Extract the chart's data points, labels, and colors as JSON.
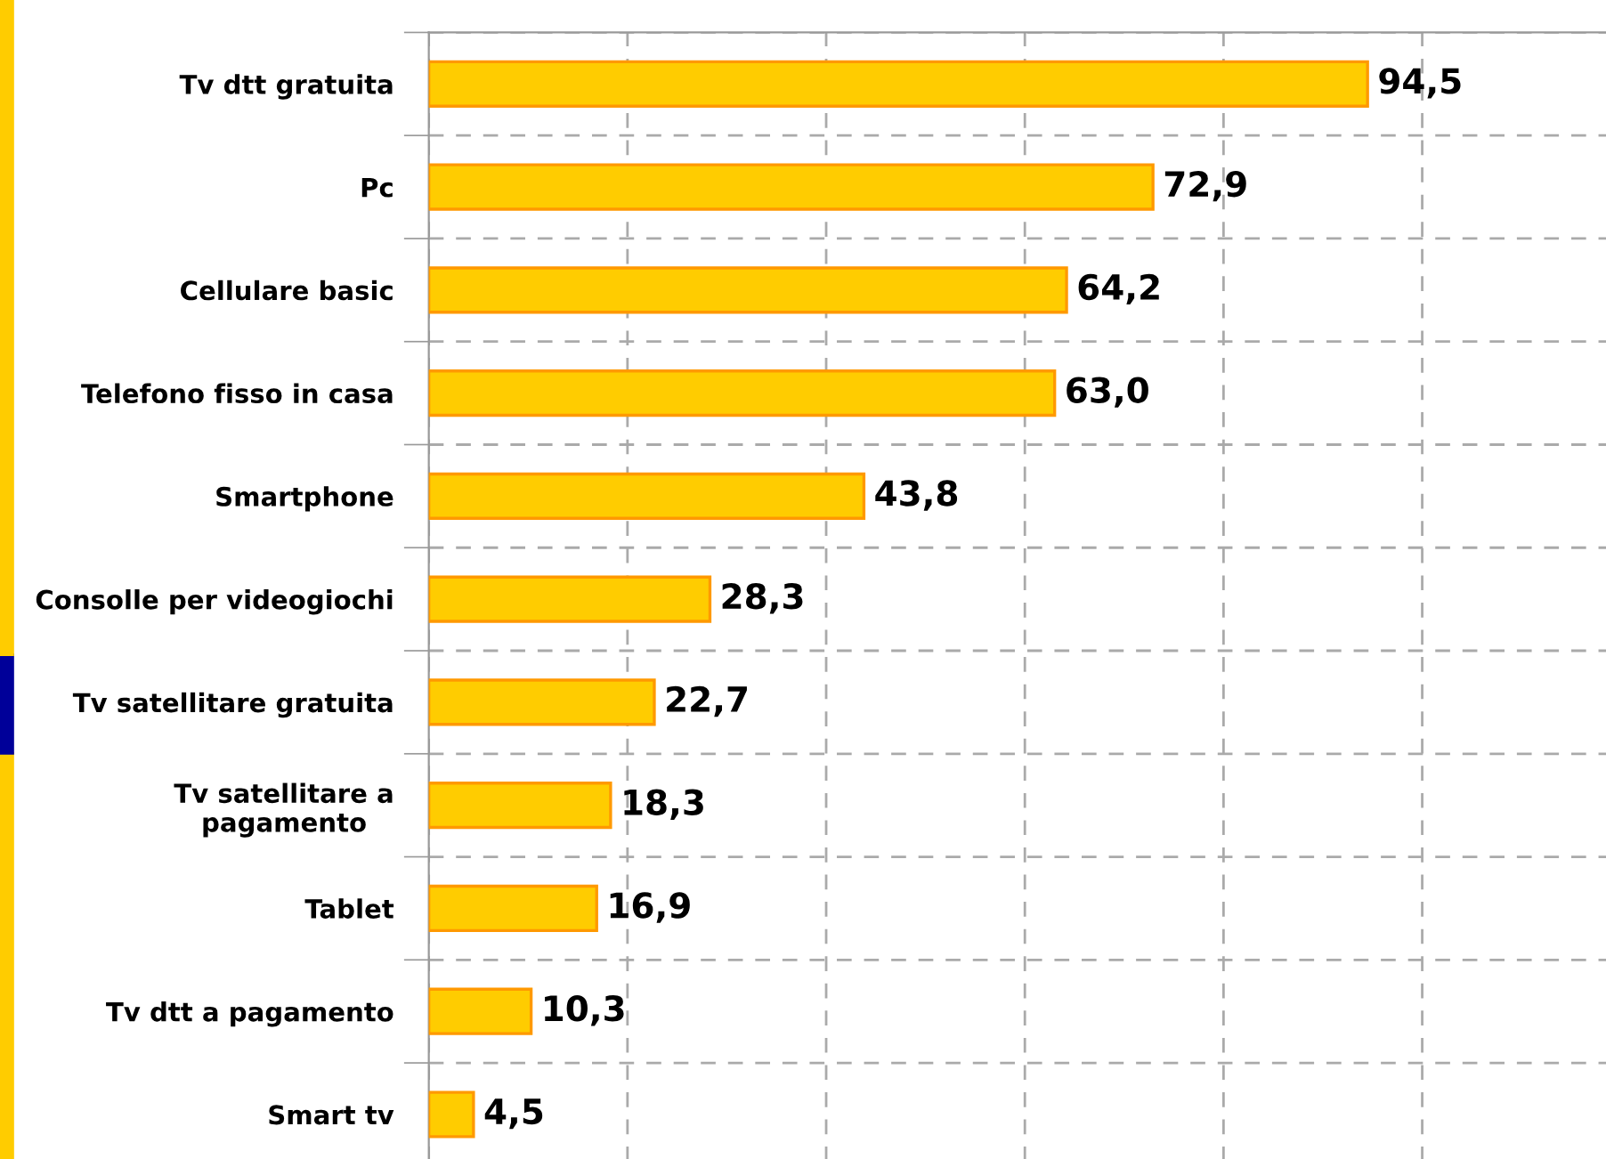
{
  "chart_data": {
    "type": "bar",
    "orientation": "horizontal",
    "categories": [
      "Tv dtt gratuita",
      "Pc",
      "Cellulare basic",
      "Telefono fisso in casa",
      "Smartphone",
      "Consolle per videogiochi",
      "Tv satellitare gratuita",
      "Tv satellitare a\npagamento",
      "Tablet",
      "Tv dtt a pagamento",
      "Smart tv"
    ],
    "values": [
      94.5,
      72.9,
      64.2,
      63.0,
      43.8,
      28.3,
      22.7,
      18.3,
      16.9,
      10.3,
      4.5
    ],
    "value_labels": [
      "94,5",
      "72,9",
      "64,2",
      "63,0",
      "43,8",
      "28,3",
      "22,7",
      "18,3",
      "16,9",
      "10,3",
      "4,5"
    ],
    "color": "#ffcc00",
    "xlim": [
      0,
      118.5
    ],
    "xticks": [
      {
        "value": 0,
        "label": null
      },
      {
        "value": 20,
        "label": null
      },
      {
        "value": 40,
        "label": null
      },
      {
        "value": 60,
        "label": null
      },
      {
        "value": 80,
        "label": null
      },
      {
        "value": 100,
        "label": null
      }
    ],
    "grid": true,
    "tick_labels": "y"
  }
}
